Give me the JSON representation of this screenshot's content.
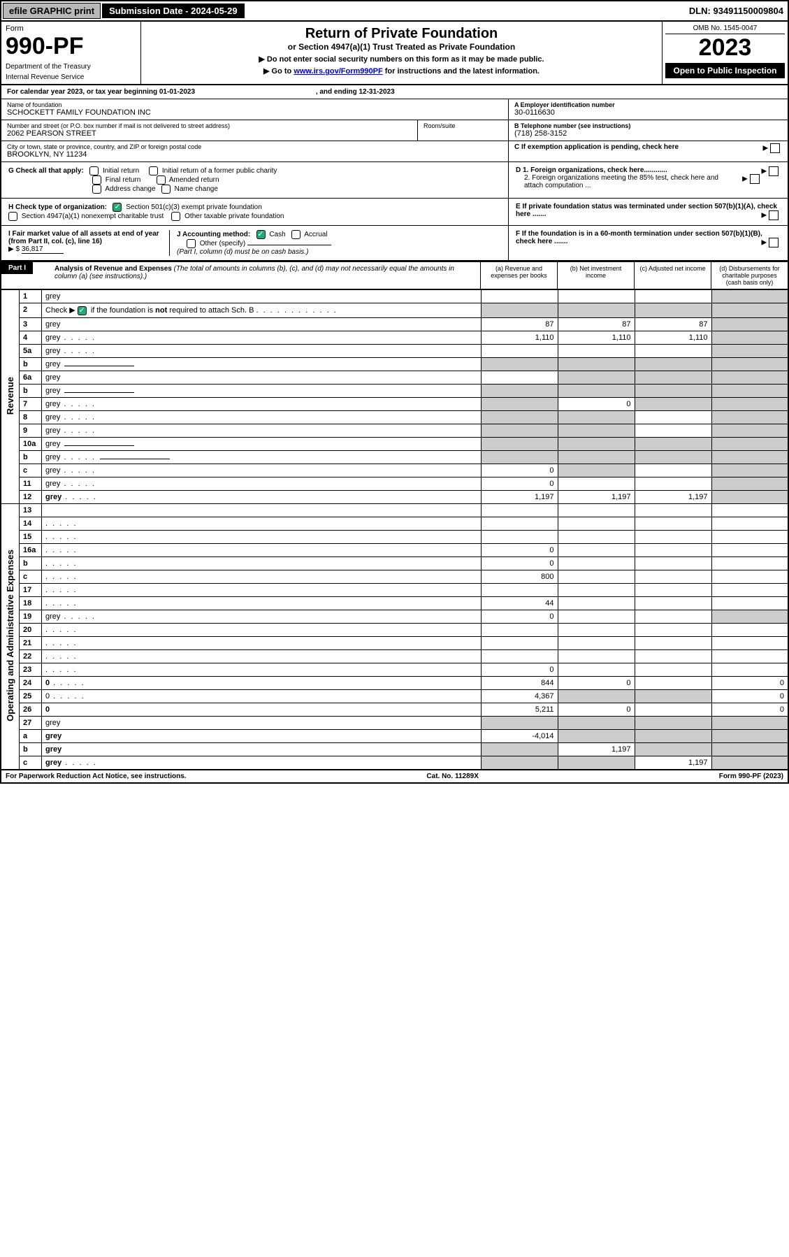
{
  "topbar": {
    "efile": "efile GRAPHIC print",
    "subdate_label": "Submission Date - 2024-05-29",
    "dln": "DLN: 93491150009804"
  },
  "header": {
    "form_word": "Form",
    "form_num": "990-PF",
    "dept": "Department of the Treasury",
    "irs": "Internal Revenue Service",
    "title": "Return of Private Foundation",
    "subtitle": "or Section 4947(a)(1) Trust Treated as Private Foundation",
    "note1": "▶ Do not enter social security numbers on this form as it may be made public.",
    "note2_pre": "▶ Go to ",
    "note2_link": "www.irs.gov/Form990PF",
    "note2_post": " for instructions and the latest information.",
    "omb": "OMB No. 1545-0047",
    "year": "2023",
    "open": "Open to Public Inspection"
  },
  "cal": {
    "text": "For calendar year 2023, or tax year beginning 01-01-2023",
    "end": ", and ending 12-31-2023"
  },
  "entity": {
    "name_lbl": "Name of foundation",
    "name": "SCHOCKETT FAMILY FOUNDATION INC",
    "addr_lbl": "Number and street (or P.O. box number if mail is not delivered to street address)",
    "addr": "2062 PEARSON STREET",
    "room_lbl": "Room/suite",
    "city_lbl": "City or town, state or province, country, and ZIP or foreign postal code",
    "city": "BROOKLYN, NY  11234",
    "a_lbl": "A Employer identification number",
    "a_val": "30-0116630",
    "b_lbl": "B Telephone number (see instructions)",
    "b_val": "(718) 258-3152",
    "c_lbl": "C If exemption application is pending, check here"
  },
  "checks": {
    "g_label": "G Check all that apply:",
    "g_initial": "Initial return",
    "g_initial_former": "Initial return of a former public charity",
    "g_final": "Final return",
    "g_amended": "Amended return",
    "g_addr": "Address change",
    "g_name": "Name change",
    "h_label": "H Check type of organization:",
    "h_501c3": "Section 501(c)(3) exempt private foundation",
    "h_4947": "Section 4947(a)(1) nonexempt charitable trust",
    "h_other": "Other taxable private foundation",
    "i_label": "I Fair market value of all assets at end of year (from Part II, col. (c), line 16)",
    "i_val": "36,817",
    "j_label": "J Accounting method:",
    "j_cash": "Cash",
    "j_accrual": "Accrual",
    "j_other": "Other (specify)",
    "j_note": "(Part I, column (d) must be on cash basis.)",
    "d1": "D 1. Foreign organizations, check here............",
    "d2": "2. Foreign organizations meeting the 85% test, check here and attach computation ...",
    "e": "E  If private foundation status was terminated under section 507(b)(1)(A), check here .......",
    "f": "F  If the foundation is in a 60-month termination under section 507(b)(1)(B), check here ......."
  },
  "part1": {
    "label": "Part I",
    "title": "Analysis of Revenue and Expenses",
    "title_note": " (The total of amounts in columns (b), (c), and (d) may not necessarily equal the amounts in column (a) (see instructions).)",
    "col_a": "(a)    Revenue and expenses per books",
    "col_b": "(b)    Net investment income",
    "col_c": "(c)    Adjusted net income",
    "col_d": "(d)   Disbursements for charitable purposes (cash basis only)"
  },
  "sections": {
    "revenue": "Revenue",
    "opex": "Operating and Administrative Expenses"
  },
  "rows": [
    {
      "n": "1",
      "d": "grey",
      "a": "",
      "b": "",
      "c": ""
    },
    {
      "n": "2",
      "d": "grey",
      "a": "grey",
      "b": "grey",
      "c": "grey",
      "dots": true
    },
    {
      "n": "3",
      "d": "grey",
      "a": "87",
      "b": "87",
      "c": "87"
    },
    {
      "n": "4",
      "d": "grey",
      "a": "1,110",
      "b": "1,110",
      "c": "1,110",
      "dots": true
    },
    {
      "n": "5a",
      "d": "grey",
      "a": "",
      "b": "",
      "c": "",
      "dots": true
    },
    {
      "n": "b",
      "d": "grey",
      "a": "grey",
      "b": "grey",
      "c": "grey",
      "inset": true
    },
    {
      "n": "6a",
      "d": "grey",
      "a": "",
      "b": "grey",
      "c": "grey"
    },
    {
      "n": "b",
      "d": "grey",
      "a": "grey",
      "b": "grey",
      "c": "grey",
      "inset": true
    },
    {
      "n": "7",
      "d": "grey",
      "a": "grey",
      "b": "0",
      "c": "grey",
      "dots": true
    },
    {
      "n": "8",
      "d": "grey",
      "a": "grey",
      "b": "grey",
      "c": "",
      "dots": true
    },
    {
      "n": "9",
      "d": "grey",
      "a": "grey",
      "b": "grey",
      "c": "",
      "dots": true
    },
    {
      "n": "10a",
      "d": "grey",
      "a": "grey",
      "b": "grey",
      "c": "grey",
      "inset": true
    },
    {
      "n": "b",
      "d": "grey",
      "a": "grey",
      "b": "grey",
      "c": "grey",
      "inset": true,
      "dots": true
    },
    {
      "n": "c",
      "d": "grey",
      "a": "0",
      "b": "grey",
      "c": "",
      "dots": true
    },
    {
      "n": "11",
      "d": "grey",
      "a": "0",
      "b": "",
      "c": "",
      "dots": true
    },
    {
      "n": "12",
      "d": "grey",
      "a": "1,197",
      "b": "1,197",
      "c": "1,197",
      "bold": true,
      "dots": true
    },
    {
      "n": "13",
      "d": "",
      "a": "",
      "b": "",
      "c": ""
    },
    {
      "n": "14",
      "d": "",
      "a": "",
      "b": "",
      "c": "",
      "dots": true
    },
    {
      "n": "15",
      "d": "",
      "a": "",
      "b": "",
      "c": "",
      "dots": true
    },
    {
      "n": "16a",
      "d": "",
      "a": "0",
      "b": "",
      "c": "",
      "dots": true
    },
    {
      "n": "b",
      "d": "",
      "a": "0",
      "b": "",
      "c": "",
      "dots": true
    },
    {
      "n": "c",
      "d": "",
      "a": "800",
      "b": "",
      "c": "",
      "dots": true
    },
    {
      "n": "17",
      "d": "",
      "a": "",
      "b": "",
      "c": "",
      "dots": true
    },
    {
      "n": "18",
      "d": "",
      "a": "44",
      "b": "",
      "c": "",
      "dots": true
    },
    {
      "n": "19",
      "d": "grey",
      "a": "0",
      "b": "",
      "c": "",
      "dots": true
    },
    {
      "n": "20",
      "d": "",
      "a": "",
      "b": "",
      "c": "",
      "dots": true
    },
    {
      "n": "21",
      "d": "",
      "a": "",
      "b": "",
      "c": "",
      "dots": true
    },
    {
      "n": "22",
      "d": "",
      "a": "",
      "b": "",
      "c": "",
      "dots": true
    },
    {
      "n": "23",
      "d": "",
      "a": "0",
      "b": "",
      "c": "",
      "dots": true
    },
    {
      "n": "24",
      "d": "0",
      "a": "844",
      "b": "0",
      "c": "",
      "bold": true,
      "dots": true
    },
    {
      "n": "25",
      "d": "0",
      "a": "4,367",
      "b": "grey",
      "c": "grey",
      "dots": true
    },
    {
      "n": "26",
      "d": "0",
      "a": "5,211",
      "b": "0",
      "c": "",
      "bold": true
    },
    {
      "n": "27",
      "d": "grey",
      "a": "grey",
      "b": "grey",
      "c": "grey"
    },
    {
      "n": "a",
      "d": "grey",
      "a": "-4,014",
      "b": "grey",
      "c": "grey",
      "bold": true
    },
    {
      "n": "b",
      "d": "grey",
      "a": "grey",
      "b": "1,197",
      "c": "grey",
      "bold": true
    },
    {
      "n": "c",
      "d": "grey",
      "a": "grey",
      "b": "grey",
      "c": "1,197",
      "bold": true,
      "dots": true
    }
  ],
  "footer": {
    "left": "For Paperwork Reduction Act Notice, see instructions.",
    "mid": "Cat. No. 11289X",
    "right": "Form 990-PF (2023)"
  }
}
